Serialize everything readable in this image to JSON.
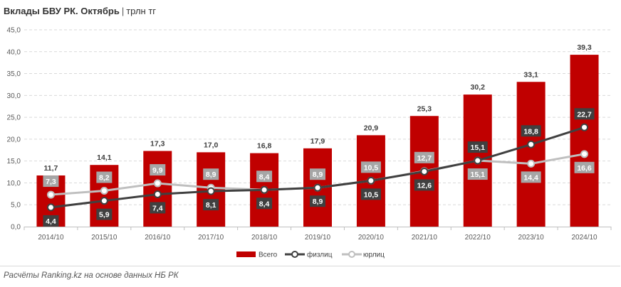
{
  "header": {
    "title": "Вклады БВУ РК. Октябрь",
    "separator": "|",
    "unit": "трлн тг"
  },
  "footer": {
    "source": "Расчёты Ranking.kz на основе данных НБ РК"
  },
  "colors": {
    "total": "#c00000",
    "individuals": "#404040",
    "legal": "#bfbfbf",
    "label_box_dark": "#404040",
    "label_box_light": "#a6a6a6"
  },
  "chart_data": {
    "type": "bar",
    "categories": [
      "2014/10",
      "2015/10",
      "2016/10",
      "2017/10",
      "2018/10",
      "2019/10",
      "2020/10",
      "2021/10",
      "2022/10",
      "2023/10",
      "2024/10"
    ],
    "ylim": [
      0,
      45
    ],
    "yticks": [
      "0,0",
      "5,0",
      "10,0",
      "15,0",
      "20,0",
      "25,0",
      "30,0",
      "35,0",
      "40,0",
      "45,0"
    ],
    "grid": true,
    "legend_position": "bottom",
    "series": [
      {
        "name": "Всего",
        "kind": "bar",
        "values": [
          11.7,
          14.1,
          17.3,
          17.0,
          16.8,
          17.9,
          20.9,
          25.3,
          30.2,
          33.1,
          39.3
        ],
        "labels": [
          "11,7",
          "14,1",
          "17,3",
          "17,0",
          "16,8",
          "17,9",
          "20,9",
          "25,3",
          "30,2",
          "33,1",
          "39,3"
        ]
      },
      {
        "name": "физлиц",
        "kind": "line",
        "values": [
          4.4,
          5.9,
          7.4,
          8.1,
          8.4,
          8.9,
          10.5,
          12.6,
          15.1,
          18.8,
          22.7
        ],
        "labels": [
          "4,4",
          "5,9",
          "7,4",
          "8,1",
          "8,4",
          "8,9",
          "10,5",
          "12,6",
          "15,1",
          "18,8",
          "22,7"
        ]
      },
      {
        "name": "юрлиц",
        "kind": "line",
        "values": [
          7.3,
          8.2,
          9.9,
          8.9,
          8.4,
          8.9,
          10.5,
          12.7,
          15.1,
          14.4,
          16.6
        ],
        "labels": [
          "7,3",
          "8,2",
          "9,9",
          "8,9",
          "8,4",
          "8,9",
          "10,5",
          "12,7",
          "15,1",
          "14,4",
          "16,6"
        ]
      }
    ]
  }
}
